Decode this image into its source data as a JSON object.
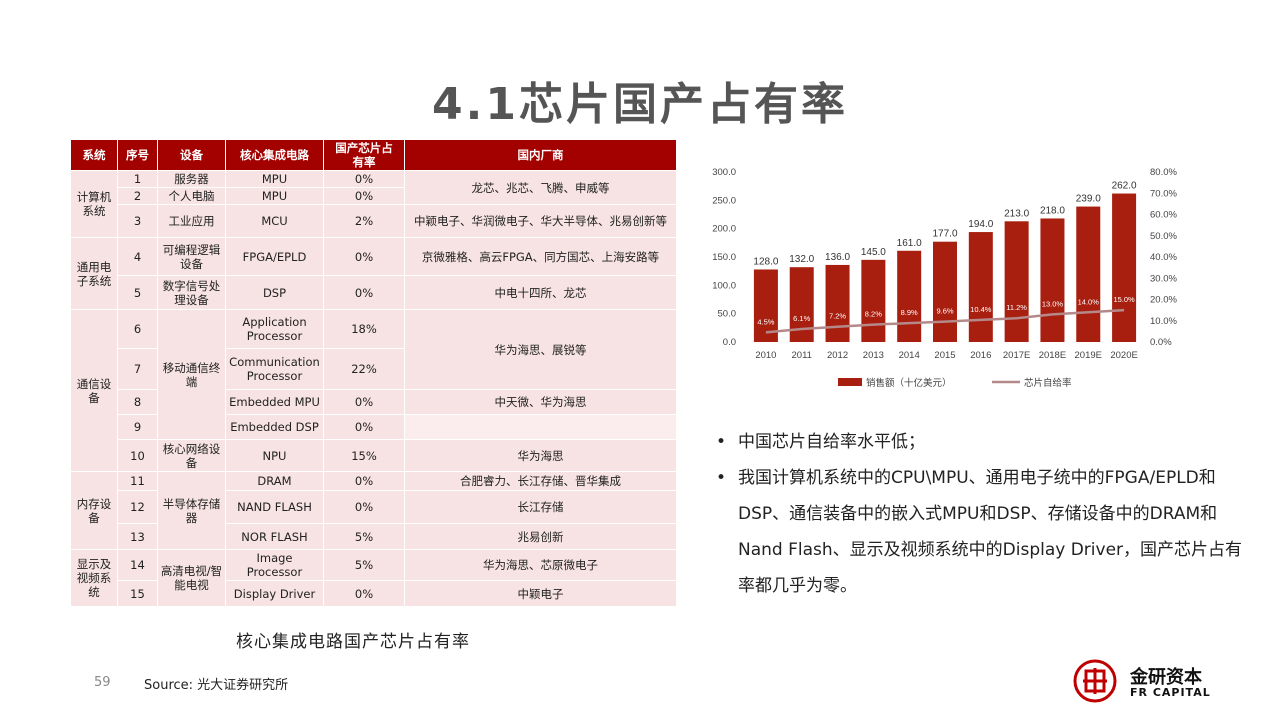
{
  "slide": {
    "title": "4.1芯片国产占有率",
    "caption": "核心集成电路国产芯片占有率",
    "page_number": "59",
    "source": "Source: 光大证券研究所",
    "logo": {
      "cn": "金研资本",
      "en": "FR CAPITAL"
    }
  },
  "table": {
    "headers": [
      "系统",
      "序号",
      "设备",
      "核心集成电路",
      "国产芯片占有率",
      "国内厂商"
    ],
    "systems": [
      "计算机系统",
      "通用电子系统",
      "通信设备",
      "内存设备",
      "显示及视频系统"
    ],
    "devices": [
      "服务器",
      "个人电脑",
      "工业应用",
      "可编程逻辑设备",
      "数字信号处理设备",
      "移动通信终端",
      "核心网络设备",
      "半导体存储器",
      "高清电视/智能电视"
    ],
    "rows": [
      {
        "no": "1",
        "ic": "MPU",
        "share": "0%"
      },
      {
        "no": "2",
        "ic": "MPU",
        "share": "0%"
      },
      {
        "no": "3",
        "ic": "MCU",
        "share": "2%"
      },
      {
        "no": "4",
        "ic": "FPGA/EPLD",
        "share": "0%"
      },
      {
        "no": "5",
        "ic": "DSP",
        "share": "0%"
      },
      {
        "no": "6",
        "ic": "Application Processor",
        "share": "18%"
      },
      {
        "no": "7",
        "ic": "Communication Processor",
        "share": "22%"
      },
      {
        "no": "8",
        "ic": "Embedded MPU",
        "share": "0%"
      },
      {
        "no": "9",
        "ic": "Embedded DSP",
        "share": "0%"
      },
      {
        "no": "10",
        "ic": "NPU",
        "share": "15%"
      },
      {
        "no": "11",
        "ic": "DRAM",
        "share": "0%"
      },
      {
        "no": "12",
        "ic": "NAND FLASH",
        "share": "0%"
      },
      {
        "no": "13",
        "ic": "NOR FLASH",
        "share": "5%"
      },
      {
        "no": "14",
        "ic": "Image Processor",
        "share": "5%"
      },
      {
        "no": "15",
        "ic": "Display Driver",
        "share": "0%"
      }
    ],
    "vendors": [
      "龙芯、兆芯、飞腾、申威等",
      "中颖电子、华润微电子、华大半导体、兆易创新等",
      "京微雅格、高云FPGA、同方国芯、上海安路等",
      "中电十四所、龙芯",
      "华为海思、展锐等",
      "中天微、华为海思",
      "华为海思",
      "合肥睿力、长江存储、晋华集成",
      "长江存储",
      "兆易创新",
      "华为海思、芯原微电子",
      "中颖电子"
    ]
  },
  "chart_data": {
    "type": "bar",
    "categories": [
      "2010",
      "2011",
      "2012",
      "2013",
      "2014",
      "2015",
      "2016",
      "2017E",
      "2018E",
      "2019E",
      "2020E"
    ],
    "series": [
      {
        "name": "销售额（十亿美元）",
        "type": "bar",
        "axis": "left",
        "values": [
          128.0,
          132.0,
          136.0,
          145.0,
          161.0,
          177.0,
          194.0,
          213.0,
          218.0,
          239.0,
          262.0
        ],
        "labels": [
          "128.0",
          "132.0",
          "136.0",
          "145.0",
          "161.0",
          "177.0",
          "194.0",
          "213.0",
          "218.0",
          "239.0",
          "262.0"
        ]
      },
      {
        "name": "芯片自给率",
        "type": "line",
        "axis": "right",
        "values": [
          4.5,
          6.1,
          7.2,
          8.2,
          8.9,
          9.6,
          10.4,
          11.2,
          13.0,
          14.0,
          15.0
        ],
        "labels": [
          "4.5%",
          "6.1%",
          "7.2%",
          "8.2%",
          "8.9%",
          "9.6%",
          "10.4%",
          "11.2%",
          "13.0%",
          "14.0%",
          "15.0%"
        ]
      }
    ],
    "left_axis": {
      "ylim": [
        0,
        300
      ],
      "ticks": [
        "0.0",
        "50.0",
        "100.0",
        "150.0",
        "200.0",
        "250.0",
        "300.0"
      ]
    },
    "right_axis": {
      "ylim": [
        0,
        80
      ],
      "ticks": [
        "0.0%",
        "10.0%",
        "20.0%",
        "30.0%",
        "40.0%",
        "50.0%",
        "60.0%",
        "70.0%",
        "80.0%"
      ]
    },
    "legend_position": "bottom",
    "colors": {
      "bar": "#A81E0F",
      "line": "#B5898A"
    }
  },
  "bullets": [
    "中国芯片自给率水平低；",
    "我国计算机系统中的CPU\\MPU、通用电子统中的FPGA/EPLD和DSP、通信装备中的嵌入式MPU和DSP、存储设备中的DRAM和Nand Flash、显示及视频系统中的Display Driver，国产芯片占有率都几乎为零。"
  ],
  "colors": {
    "accent": "#A30000",
    "row_fill": "#F7E3E3",
    "title": "#555555"
  }
}
